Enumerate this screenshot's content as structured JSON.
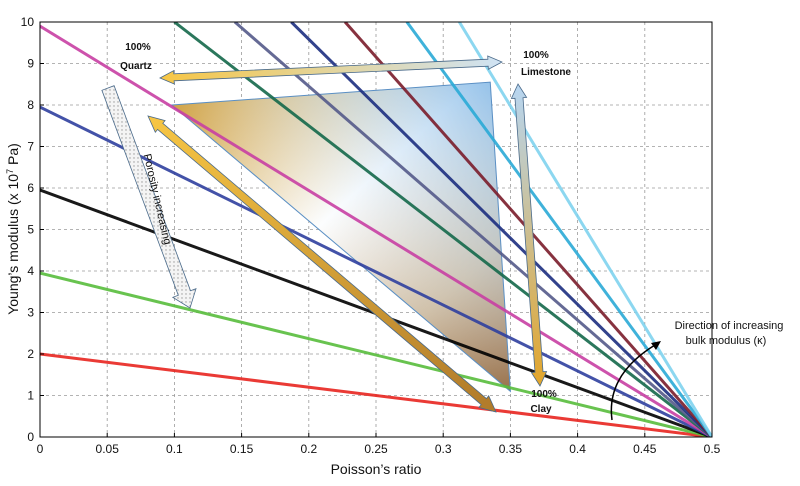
{
  "chart_data": {
    "type": "line",
    "title": "",
    "xlabel": "Poisson’s ratio",
    "ylabel": "Young’s modulus (x 10",
    "ylabel_superscript": "7",
    "ylabel_suffix": " Pa)",
    "xlim": [
      0,
      0.5
    ],
    "ylim": [
      0,
      10
    ],
    "x_ticks": [
      "0",
      "0.05",
      "0.1",
      "0.15",
      "0.2",
      "0.25",
      "0.3",
      "0.35",
      "0.4",
      "0.45",
      "0.5"
    ],
    "y_ticks": [
      "0",
      "1",
      "2",
      "3",
      "4",
      "5",
      "6",
      "7",
      "8",
      "9",
      "10"
    ],
    "grid": true,
    "series": [
      {
        "color": "#e8251f",
        "points": [
          [
            0,
            2.0
          ],
          [
            0.5,
            0
          ]
        ]
      },
      {
        "color": "#58bd3c",
        "points": [
          [
            0,
            3.95
          ],
          [
            0.5,
            0
          ]
        ]
      },
      {
        "color": "#000000",
        "points": [
          [
            0,
            5.95
          ],
          [
            0.5,
            0
          ]
        ]
      },
      {
        "color": "#2f3f9f",
        "points": [
          [
            0,
            7.95
          ],
          [
            0.5,
            0
          ]
        ]
      },
      {
        "color": "#c83fa3",
        "points": [
          [
            0,
            9.9
          ],
          [
            0.5,
            0
          ]
        ]
      },
      {
        "color": "#14684a",
        "points": [
          [
            0.1,
            10
          ],
          [
            0.5,
            0
          ]
        ]
      },
      {
        "color": "#545a8a",
        "points": [
          [
            0.145,
            10
          ],
          [
            0.5,
            0
          ]
        ]
      },
      {
        "color": "#1c2d80",
        "points": [
          [
            0.187,
            10
          ],
          [
            0.5,
            0
          ]
        ]
      },
      {
        "color": "#7a1c2a",
        "points": [
          [
            0.227,
            10
          ],
          [
            0.5,
            0
          ]
        ]
      },
      {
        "color": "#2aaad6",
        "points": [
          [
            0.273,
            10
          ],
          [
            0.5,
            0
          ]
        ]
      },
      {
        "color": "#7fd3ee",
        "points": [
          [
            0.312,
            10
          ],
          [
            0.5,
            0
          ]
        ]
      }
    ],
    "region": {
      "points": [
        [
          0.098,
          8.0
        ],
        [
          0.335,
          8.55
        ],
        [
          0.35,
          1.1
        ]
      ]
    },
    "annotations": {
      "quartz_line1": "100%",
      "quartz_line2": "Quartz",
      "limestone_line1": "100%",
      "limestone_line2": "Limestone",
      "clay_line1": "100%",
      "clay_line2": "Clay",
      "porosity": "Porosity increasing",
      "bulk_line1": "Direction of increasing",
      "bulk_line2": "bulk modulus (κ)"
    },
    "colors": {
      "gold": "#f2b01e",
      "light_blue": "#9cc4e8",
      "brown": "#8a5a2c"
    }
  }
}
